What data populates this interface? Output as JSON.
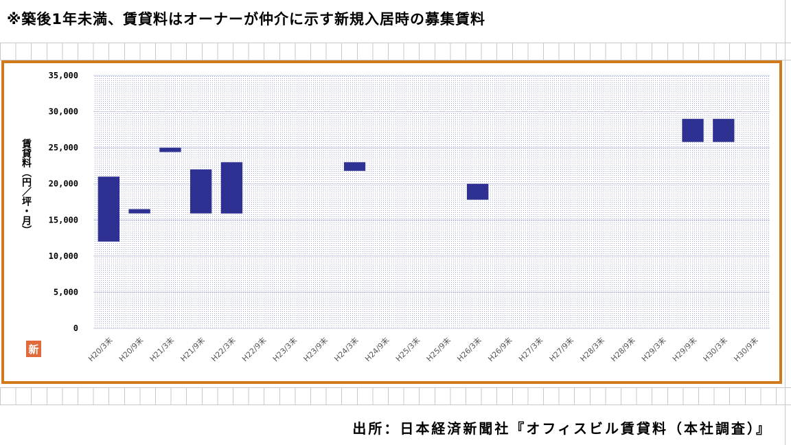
{
  "header": {
    "note": "※築後1年未満、賃貸料はオーナーが仲介に示す新規入居時の募集賃料"
  },
  "footer": {
    "source": "出所：日本経済新聞社『オフィスビル賃貸料（本社調査）』"
  },
  "logo": {
    "text": "新"
  },
  "colors": {
    "bar": "#2e3192",
    "frame": "#d07a1c",
    "dots": "#9fa6d6",
    "gridline": "#c4c8e0"
  },
  "chart_data": {
    "type": "bar",
    "subtype": "floating-range",
    "ylabel": "賃貸料（円／坪・月）",
    "ylim": [
      0,
      35000
    ],
    "yticks": [
      0,
      5000,
      10000,
      15000,
      20000,
      25000,
      30000,
      35000
    ],
    "ytick_labels": [
      "0",
      "5,000",
      "10,000",
      "15,000",
      "20,000",
      "25,000",
      "30,000",
      "35,000"
    ],
    "grid": true,
    "categories": [
      "H20/3末",
      "H20/9末",
      "H21/3末",
      "H21/9末",
      "H22/3末",
      "H22/9末",
      "H23/3末",
      "H23/9末",
      "H24/3末",
      "H24/9末",
      "H25/3末",
      "H25/9末",
      "H26/3末",
      "H26/9末",
      "H27/3末",
      "H27/9末",
      "H28/3末",
      "H28/9末",
      "H29/3末",
      "H29/9末",
      "H30/3末",
      "H30/9末"
    ],
    "series": [
      {
        "low": [
          12000,
          15900,
          24400,
          15900,
          15900,
          null,
          null,
          null,
          21800,
          null,
          null,
          null,
          17800,
          null,
          null,
          null,
          null,
          null,
          null,
          25800,
          25800,
          null
        ],
        "high": [
          21000,
          16500,
          25000,
          22000,
          23000,
          null,
          null,
          null,
          23000,
          null,
          null,
          null,
          20000,
          null,
          null,
          null,
          null,
          null,
          null,
          29000,
          29000,
          null
        ]
      }
    ]
  }
}
